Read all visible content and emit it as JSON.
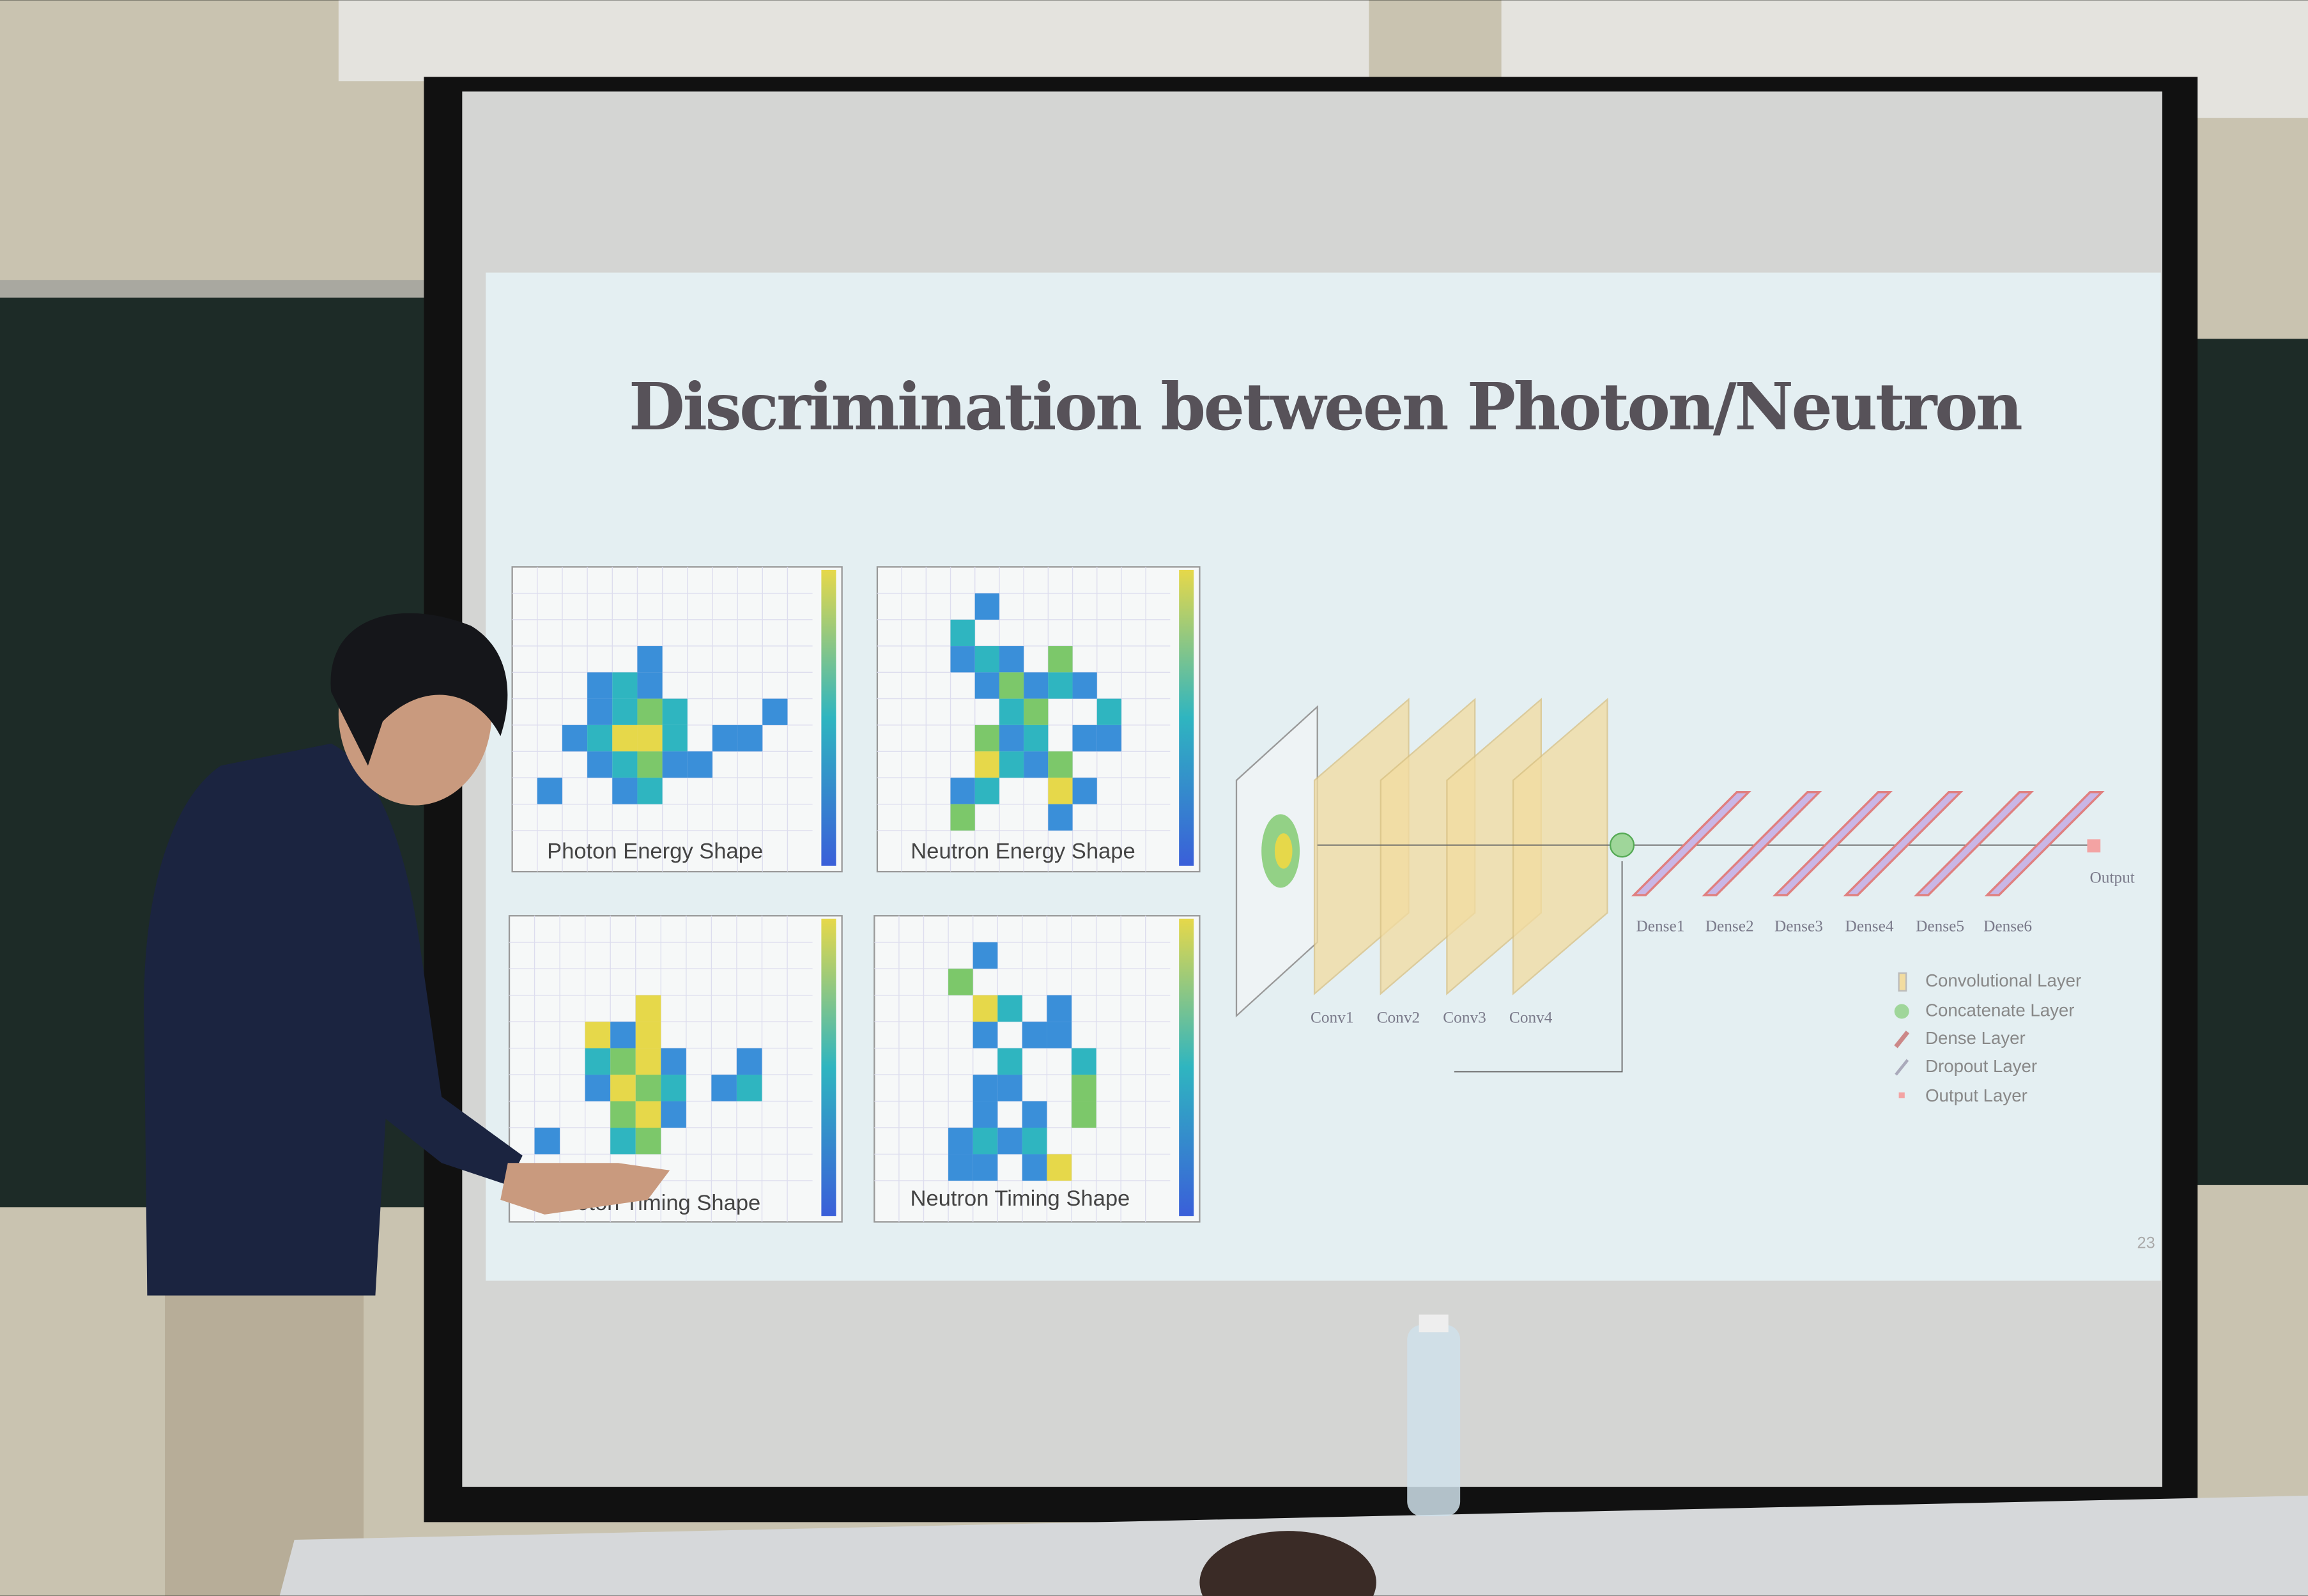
{
  "slide": {
    "title": "Discrimination between Photon/Neutron",
    "panels": [
      "Photon Energy Shape",
      "Neutron Energy Shape",
      "Photon Timing Shape",
      "Neutron Timing Shape"
    ],
    "network": {
      "conv_layers": [
        "Conv1",
        "Conv2",
        "Conv3",
        "Conv4"
      ],
      "dense_layers": [
        "Dense1",
        "Dense2",
        "Dense3",
        "Dense4",
        "Dense5",
        "Dense6"
      ],
      "output": "Output",
      "legend": [
        "Convolutional Layer",
        "Concatenate Layer",
        "Dense Layer",
        "Dropout Layer",
        "Output Layer"
      ]
    },
    "page_number": "23"
  }
}
